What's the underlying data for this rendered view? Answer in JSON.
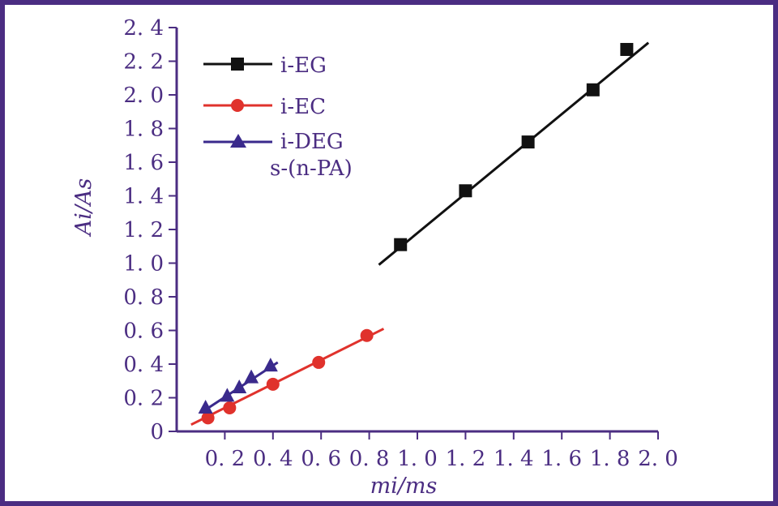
{
  "colors": {
    "frame": "#4b2d82",
    "axis": "#4b2d82",
    "text": "#4b2d82",
    "eg": "#111111",
    "ec": "#e0322c",
    "deg": "#3a2a8c"
  },
  "chart_data": {
    "type": "scatter",
    "title": "",
    "xlabel": "mi/ms",
    "ylabel": "Ai/As",
    "xlim": [
      0,
      2.0
    ],
    "ylim": [
      0,
      2.4
    ],
    "grid": false,
    "legend_position": "top-left",
    "x_ticks": [
      {
        "value": 0.2,
        "label": "0. 2"
      },
      {
        "value": 0.4,
        "label": "0. 4"
      },
      {
        "value": 0.6,
        "label": "0. 6"
      },
      {
        "value": 0.8,
        "label": "0. 8"
      },
      {
        "value": 1.0,
        "label": "1. 0"
      },
      {
        "value": 1.2,
        "label": "1. 2"
      },
      {
        "value": 1.4,
        "label": "1. 4"
      },
      {
        "value": 1.6,
        "label": "1. 6"
      },
      {
        "value": 1.8,
        "label": "1. 8"
      },
      {
        "value": 2.0,
        "label": "2. 0"
      }
    ],
    "y_ticks": [
      {
        "value": 0,
        "label": "0"
      },
      {
        "value": 0.2,
        "label": "0. 2"
      },
      {
        "value": 0.4,
        "label": "0. 4"
      },
      {
        "value": 0.6,
        "label": "0. 6"
      },
      {
        "value": 0.8,
        "label": "0. 8"
      },
      {
        "value": 1.0,
        "label": "1. 0"
      },
      {
        "value": 1.2,
        "label": "1. 2"
      },
      {
        "value": 1.4,
        "label": "1. 4"
      },
      {
        "value": 1.6,
        "label": "1. 6"
      },
      {
        "value": 1.8,
        "label": "1. 8"
      },
      {
        "value": 2.0,
        "label": "2. 0"
      },
      {
        "value": 2.2,
        "label": "2. 2"
      },
      {
        "value": 2.4,
        "label": "2. 4"
      }
    ],
    "legend_note": "s-(n-PA)",
    "series": [
      {
        "name": "i-EG",
        "marker": "square",
        "color": "#111111",
        "x": [
          0.93,
          1.2,
          1.46,
          1.73,
          1.87
        ],
        "y": [
          1.11,
          1.43,
          1.72,
          2.03,
          2.27
        ],
        "fit_line": [
          [
            0.84,
            0.99
          ],
          [
            1.96,
            2.31
          ]
        ]
      },
      {
        "name": "i-EC",
        "marker": "circle",
        "color": "#e0322c",
        "x": [
          0.13,
          0.22,
          0.4,
          0.59,
          0.79
        ],
        "y": [
          0.08,
          0.14,
          0.28,
          0.41,
          0.57
        ],
        "fit_line": [
          [
            0.06,
            0.04
          ],
          [
            0.86,
            0.61
          ]
        ]
      },
      {
        "name": "i-DEG",
        "marker": "triangle",
        "color": "#3a2a8c",
        "x": [
          0.12,
          0.21,
          0.26,
          0.31,
          0.39
        ],
        "y": [
          0.14,
          0.21,
          0.26,
          0.32,
          0.39
        ],
        "fit_line": [
          [
            0.1,
            0.11
          ],
          [
            0.42,
            0.41
          ]
        ]
      }
    ]
  }
}
